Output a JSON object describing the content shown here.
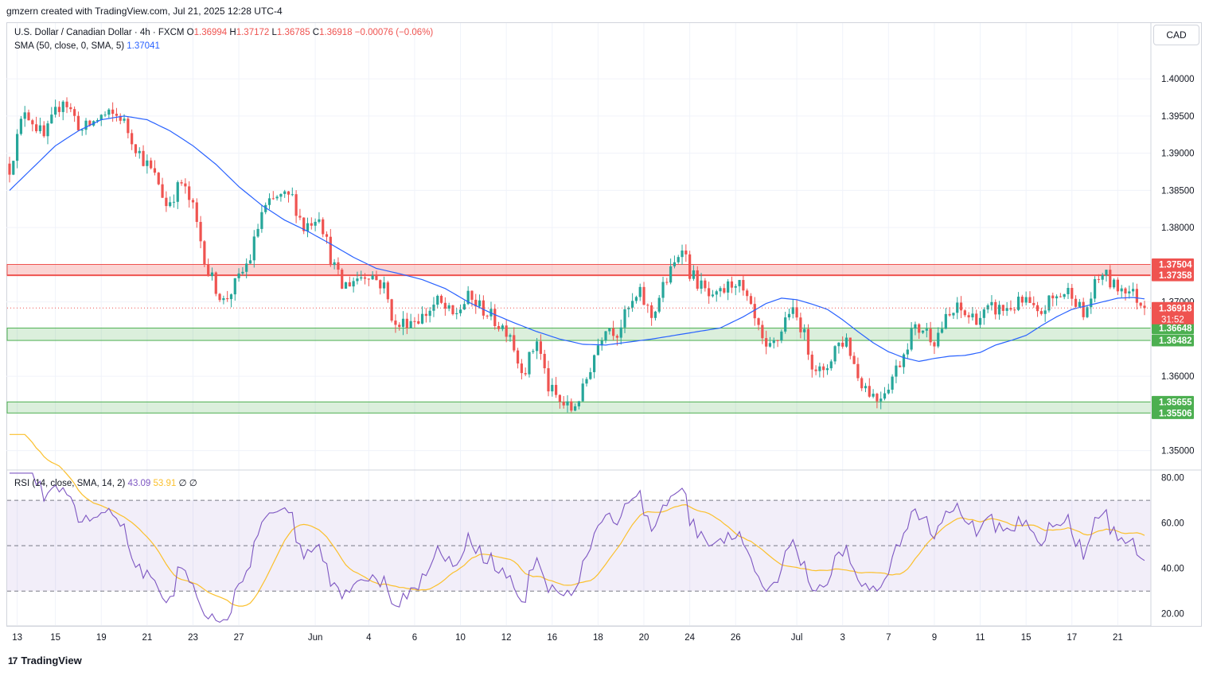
{
  "header": {
    "credit": "gmzern created with TradingView.com, Jul 21, 2025 12:28 UTC-4"
  },
  "legend": {
    "symbol": "U.S. Dollar / Canadian Dollar · 4h · FXCM",
    "o_label": "O",
    "o": "1.36994",
    "h_label": "H",
    "h": "1.37172",
    "l_label": "L",
    "l": "1.36785",
    "c_label": "C",
    "c": "1.36918",
    "change": "−0.00076 (−0.06%)",
    "sma_label": "SMA (50, close, 0, SMA, 5)",
    "sma_value": "1.37041",
    "rsi_label": "RSI (14, close, SMA, 14, 2)",
    "rsi_value": "43.09",
    "rsi_sma_value": "53.91",
    "rsi_extra": "∅ ∅"
  },
  "currency": "CAD",
  "footer": {
    "brand": "TradingView",
    "logo": "17"
  },
  "colors": {
    "up": "#26a69a",
    "down": "#ef5350",
    "sma": "#2962ff",
    "rsi": "#7e57c2",
    "rsi_sma": "#fbc02d",
    "resistance": "#ef5350",
    "support": "#4caf50"
  },
  "chart_data": [
    {
      "type": "candlestick",
      "title": "U.S. Dollar / Canadian Dollar · 4h · FXCM",
      "ylim": [
        1.3475,
        1.4075
      ],
      "y_ticks": [
        "1.40000",
        "1.39500",
        "1.39000",
        "1.38500",
        "1.38000",
        "1.37000",
        "1.36000",
        "1.35000"
      ],
      "x_labels": [
        "13",
        "15",
        "19",
        "21",
        "23",
        "27",
        "Jun",
        "4",
        "6",
        "10",
        "12",
        "16",
        "18",
        "20",
        "24",
        "26",
        "Jul",
        "3",
        "7",
        "9",
        "11",
        "15",
        "17",
        "21"
      ],
      "x_label_index": [
        2,
        12,
        24,
        36,
        48,
        60,
        80,
        94,
        106,
        118,
        130,
        142,
        154,
        166,
        178,
        190,
        206,
        218,
        230,
        242,
        254,
        266,
        278,
        290
      ],
      "price_path": [
        [
          0,
          1.388
        ],
        [
          4,
          1.396
        ],
        [
          9,
          1.392
        ],
        [
          14,
          1.3975
        ],
        [
          19,
          1.393
        ],
        [
          24,
          1.395
        ],
        [
          29,
          1.395
        ],
        [
          34,
          1.39
        ],
        [
          39,
          1.386
        ],
        [
          41,
          1.383
        ],
        [
          45,
          1.386
        ],
        [
          48,
          1.3825
        ],
        [
          52,
          1.374
        ],
        [
          56,
          1.37
        ],
        [
          60,
          1.373
        ],
        [
          63,
          1.376
        ],
        [
          66,
          1.382
        ],
        [
          70,
          1.384
        ],
        [
          74,
          1.384
        ],
        [
          77,
          1.38
        ],
        [
          81,
          1.382
        ],
        [
          84,
          1.376
        ],
        [
          87,
          1.372
        ],
        [
          90,
          1.373
        ],
        [
          94,
          1.374
        ],
        [
          98,
          1.372
        ],
        [
          101,
          1.3665
        ],
        [
          104,
          1.3675
        ],
        [
          108,
          1.368
        ],
        [
          112,
          1.37
        ],
        [
          116,
          1.368
        ],
        [
          120,
          1.3705
        ],
        [
          124,
          1.369
        ],
        [
          128,
          1.367
        ],
        [
          131,
          1.366
        ],
        [
          133,
          1.362
        ],
        [
          135,
          1.361
        ],
        [
          138,
          1.365
        ],
        [
          141,
          1.3585
        ],
        [
          144,
          1.3565
        ],
        [
          147,
          1.3555
        ],
        [
          150,
          1.358
        ],
        [
          153,
          1.363
        ],
        [
          156,
          1.367
        ],
        [
          159,
          1.366
        ],
        [
          162,
          1.369
        ],
        [
          165,
          1.371
        ],
        [
          168,
          1.368
        ],
        [
          171,
          1.372
        ],
        [
          174,
          1.375
        ],
        [
          176,
          1.378
        ],
        [
          178,
          1.374
        ],
        [
          181,
          1.372
        ],
        [
          184,
          1.37
        ],
        [
          187,
          1.3715
        ],
        [
          190,
          1.373
        ],
        [
          193,
          1.37
        ],
        [
          196,
          1.366
        ],
        [
          198,
          1.363
        ],
        [
          201,
          1.365
        ],
        [
          204,
          1.369
        ],
        [
          207,
          1.367
        ],
        [
          210,
          1.362
        ],
        [
          213,
          1.36
        ],
        [
          216,
          1.364
        ],
        [
          219,
          1.365
        ],
        [
          222,
          1.36
        ],
        [
          225,
          1.358
        ],
        [
          227,
          1.357
        ],
        [
          230,
          1.359
        ],
        [
          233,
          1.362
        ],
        [
          236,
          1.366
        ],
        [
          239,
          1.3665
        ],
        [
          242,
          1.365
        ],
        [
          245,
          1.3675
        ],
        [
          248,
          1.369
        ],
        [
          251,
          1.368
        ],
        [
          254,
          1.368
        ],
        [
          257,
          1.369
        ],
        [
          260,
          1.369
        ],
        [
          263,
          1.3695
        ],
        [
          266,
          1.37
        ],
        [
          269,
          1.368
        ],
        [
          272,
          1.37
        ],
        [
          275,
          1.371
        ],
        [
          278,
          1.3715
        ],
        [
          281,
          1.368
        ],
        [
          284,
          1.372
        ],
        [
          286,
          1.374
        ],
        [
          289,
          1.372
        ],
        [
          292,
          1.372
        ],
        [
          295,
          1.3705
        ],
        [
          297,
          1.36918
        ]
      ],
      "sma_path": [
        [
          0,
          1.385
        ],
        [
          6,
          1.388
        ],
        [
          12,
          1.391
        ],
        [
          18,
          1.393
        ],
        [
          24,
          1.3945
        ],
        [
          30,
          1.395
        ],
        [
          36,
          1.3945
        ],
        [
          42,
          1.393
        ],
        [
          48,
          1.391
        ],
        [
          54,
          1.3885
        ],
        [
          60,
          1.3855
        ],
        [
          66,
          1.383
        ],
        [
          72,
          1.381
        ],
        [
          78,
          1.3795
        ],
        [
          84,
          1.3778
        ],
        [
          90,
          1.376
        ],
        [
          96,
          1.3745
        ],
        [
          102,
          1.3738
        ],
        [
          108,
          1.373
        ],
        [
          114,
          1.3718
        ],
        [
          120,
          1.37
        ],
        [
          126,
          1.3685
        ],
        [
          132,
          1.3672
        ],
        [
          138,
          1.366
        ],
        [
          144,
          1.365
        ],
        [
          150,
          1.3643
        ],
        [
          156,
          1.3642
        ],
        [
          162,
          1.3646
        ],
        [
          168,
          1.365
        ],
        [
          174,
          1.3655
        ],
        [
          180,
          1.366
        ],
        [
          186,
          1.3665
        ],
        [
          192,
          1.368
        ],
        [
          198,
          1.3698
        ],
        [
          202,
          1.3705
        ],
        [
          206,
          1.3703
        ],
        [
          210,
          1.3697
        ],
        [
          214,
          1.369
        ],
        [
          218,
          1.3676
        ],
        [
          222,
          1.366
        ],
        [
          226,
          1.3645
        ],
        [
          230,
          1.3633
        ],
        [
          234,
          1.3625
        ],
        [
          238,
          1.362
        ],
        [
          242,
          1.3624
        ],
        [
          246,
          1.3627
        ],
        [
          250,
          1.3628
        ],
        [
          254,
          1.3632
        ],
        [
          258,
          1.3642
        ],
        [
          262,
          1.3648
        ],
        [
          266,
          1.3655
        ],
        [
          270,
          1.3668
        ],
        [
          274,
          1.368
        ],
        [
          278,
          1.369
        ],
        [
          282,
          1.3695
        ],
        [
          286,
          1.37
        ],
        [
          290,
          1.3705
        ],
        [
          294,
          1.3706
        ],
        [
          297,
          1.37041
        ]
      ],
      "resistance_zone": {
        "top": 1.37504,
        "bottom": 1.37358
      },
      "support_zones": [
        {
          "top": 1.36648,
          "bottom": 1.36482
        },
        {
          "top": 1.35655,
          "bottom": 1.35506
        }
      ],
      "price_labels": {
        "resistance_top": "1.37504",
        "resistance_bottom": "1.37358",
        "last": "1.36918",
        "countdown": "31:52",
        "support1_top": "1.36648",
        "support1_bottom": "1.36482",
        "support2_top": "1.35655",
        "support2_bottom": "1.35506"
      },
      "last_price": 1.36918
    },
    {
      "type": "line",
      "title": "RSI (14, close, SMA, 14, 2)",
      "ylim": [
        15,
        83
      ],
      "y_ticks": [
        "80.00",
        "60.00",
        "40.00",
        "20.00"
      ],
      "upper_band": 70,
      "lower_band": 30,
      "middle": 50,
      "series": [
        {
          "name": "RSI",
          "value": "43.09"
        },
        {
          "name": "SMA",
          "value": "53.91"
        }
      ]
    }
  ]
}
